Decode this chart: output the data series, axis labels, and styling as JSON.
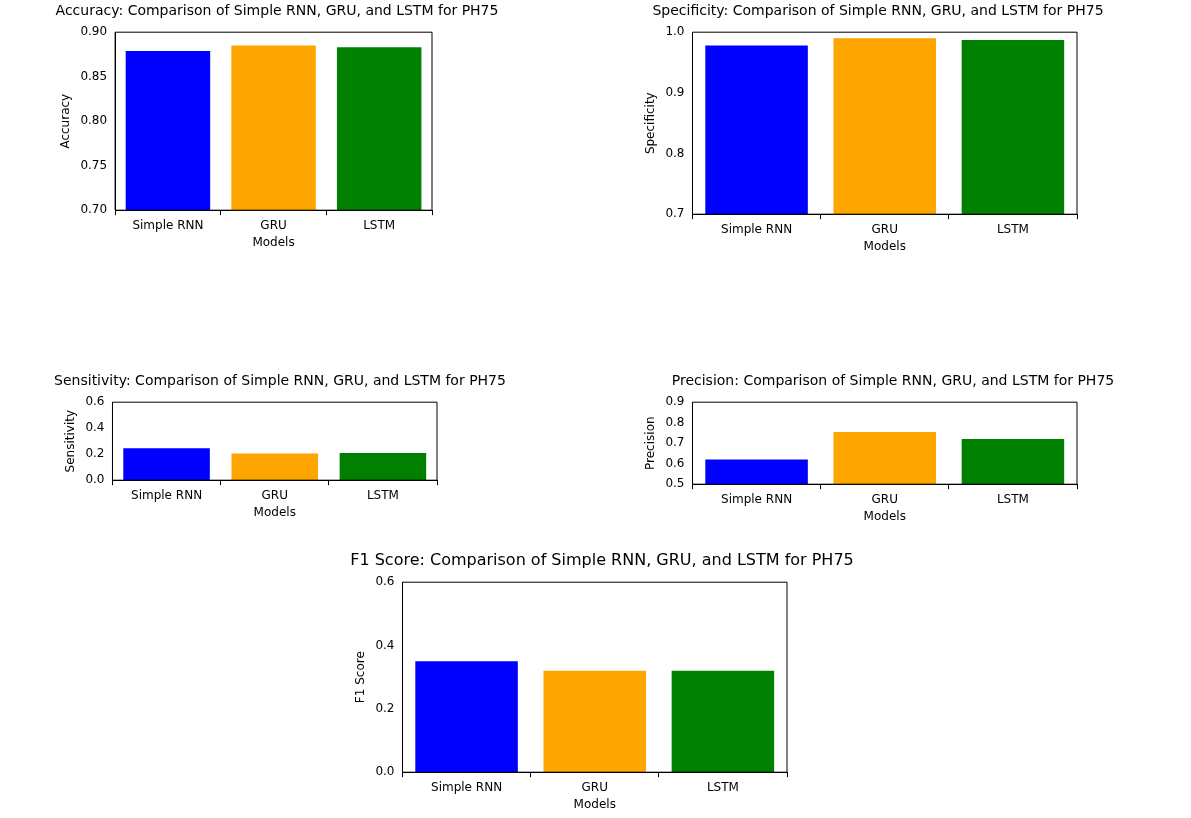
{
  "chart_data": [
    {
      "type": "bar",
      "title": "Accuracy: Comparison of Simple RNN, GRU, and LSTM for PH75",
      "xlabel": "Models",
      "ylabel": "Accuracy",
      "categories": [
        "Simple RNN",
        "GRU",
        "LSTM"
      ],
      "values": [
        0.879,
        0.885,
        0.883
      ],
      "colors": [
        "#0000ff",
        "#ffa500",
        "#008000"
      ],
      "ylim": [
        0.7,
        0.9
      ],
      "yticks": [
        {
          "value": 0.7,
          "label": "0.70"
        },
        0.75,
        {
          "value": 0.8,
          "label": "0.80"
        },
        0.85,
        {
          "value": 0.9,
          "label": "0.90"
        }
      ]
    },
    {
      "type": "bar",
      "title": "Specificity: Comparison of Simple RNN, GRU, and LSTM for PH75",
      "xlabel": "Models",
      "ylabel": "Specificity",
      "categories": [
        "Simple RNN",
        "GRU",
        "LSTM"
      ],
      "values": [
        0.978,
        0.99,
        0.987
      ],
      "colors": [
        "#0000ff",
        "#ffa500",
        "#008000"
      ],
      "ylim": [
        0.7,
        1.0
      ],
      "yticks": [
        0.7,
        0.8,
        0.9,
        {
          "value": 1,
          "label": "1.0"
        }
      ]
    },
    {
      "type": "bar",
      "title": "Sensitivity: Comparison of Simple RNN, GRU, and LSTM for PH75",
      "xlabel": "Models",
      "ylabel": "Sensitivity",
      "categories": [
        "Simple RNN",
        "GRU",
        "LSTM"
      ],
      "values": [
        0.245,
        0.205,
        0.21
      ],
      "colors": [
        "#0000ff",
        "#ffa500",
        "#008000"
      ],
      "ylim": [
        0,
        0.6
      ],
      "yticks": [
        {
          "value": 0,
          "label": "0.0"
        },
        0.2,
        0.4,
        0.6
      ]
    },
    {
      "type": "bar",
      "title": "Precision: Comparison of Simple RNN, GRU, and LSTM for PH75",
      "xlabel": "Models",
      "ylabel": "Precision",
      "categories": [
        "Simple RNN",
        "GRU",
        "LSTM"
      ],
      "values": [
        0.62,
        0.755,
        0.72
      ],
      "colors": [
        "#0000ff",
        "#ffa500",
        "#008000"
      ],
      "ylim": [
        0.5,
        0.9
      ],
      "yticks": [
        0.5,
        0.6,
        0.7,
        0.8,
        0.9
      ]
    },
    {
      "type": "bar",
      "title": "F1 Score: Comparison of Simple RNN, GRU, and LSTM for PH75",
      "xlabel": "Models",
      "ylabel": "F1 Score",
      "categories": [
        "Simple RNN",
        "GRU",
        "LSTM"
      ],
      "values": [
        0.35,
        0.32,
        0.32
      ],
      "colors": [
        "#0000ff",
        "#ffa500",
        "#008000"
      ],
      "ylim": [
        0,
        0.6
      ],
      "yticks": [
        {
          "value": 0,
          "label": "0.0"
        },
        0.2,
        0.4,
        0.6
      ]
    }
  ]
}
